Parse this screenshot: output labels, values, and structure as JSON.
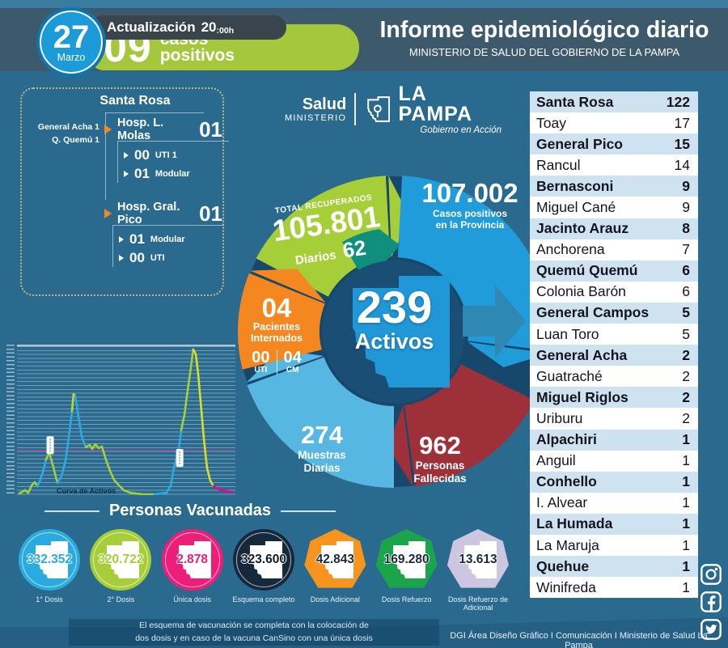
{
  "header": {
    "date_day": "27",
    "date_month": "Marzo",
    "update_label": "Actualización",
    "update_hour": "20",
    "update_minutes": ":00h",
    "daily_cases_value": "09",
    "daily_cases_line1": "casos",
    "daily_cases_line2": "positivos",
    "title": "Informe epidemiológico diario",
    "subtitle": "MINISTERIO DE SALUD DEL GOBIERNO DE LA PAMPA"
  },
  "logo": {
    "salud": "Salud",
    "ministerio": "MINISTERIO",
    "province": "LA PAMPA",
    "tagline": "Gobierno en Acción"
  },
  "hospital_panel": {
    "title": "Santa Rosa",
    "side_notes": [
      "General Acha 1",
      "Q. Quemú 1"
    ],
    "groups": [
      {
        "name": "Hosp. L. Molas",
        "value": "01",
        "subs": [
          {
            "value": "00",
            "label": "UTI 1"
          },
          {
            "value": "01",
            "label": "Modular"
          }
        ]
      },
      {
        "name": "Hosp. Gral. Pico",
        "value": "01",
        "subs": [
          {
            "value": "01",
            "label": "Modular"
          },
          {
            "value": "00",
            "label": "UTI"
          }
        ]
      }
    ]
  },
  "donut": {
    "positives": {
      "value": "107.002",
      "label_line1": "Casos positivos",
      "label_line2": "en la Provincia"
    },
    "recovered": {
      "label": "TOTAL RECUPERADOS",
      "value": "105.801",
      "daily_label": "Diarios",
      "daily_value": "62"
    },
    "hospitalized": {
      "value": "04",
      "label_line1": "Pacientes",
      "label_line2": "Internados",
      "uti_value": "00",
      "uti_label": "UTI",
      "cm_value": "04",
      "cm_label": "CM"
    },
    "samples": {
      "value": "274",
      "label_line1": "Muestras",
      "label_line2": "Diarias"
    },
    "deaths": {
      "value": "962",
      "label_line1": "Personas",
      "label_line2": "Fallecidas"
    },
    "active": {
      "value": "239",
      "label": "Activos"
    },
    "colors": {
      "recovered": "#a6ce39",
      "positives": "#1f9cd9",
      "deaths": "#9e3039",
      "samples": "#55b7e2",
      "hospitalized": "#f58721",
      "cycle_accent": "#0f8f7d",
      "active_map": "#2098d8",
      "back_ring": "#17486b",
      "center_disc": "#1a4e74"
    }
  },
  "cases_table": {
    "rows": [
      {
        "name": "Santa Rosa",
        "value": "122"
      },
      {
        "name": "Toay",
        "value": "17"
      },
      {
        "name": "General Pico",
        "value": "15"
      },
      {
        "name": "Rancul",
        "value": "14"
      },
      {
        "name": "Bernasconi",
        "value": "9"
      },
      {
        "name": "Miguel Cané",
        "value": "9"
      },
      {
        "name": "Jacinto Arauz",
        "value": "8"
      },
      {
        "name": "Anchorena",
        "value": "7"
      },
      {
        "name": "Quemú Quemú",
        "value": "6"
      },
      {
        "name": "Colonia Barón",
        "value": "6"
      },
      {
        "name": "General Campos",
        "value": "5"
      },
      {
        "name": "Luan Toro",
        "value": "5"
      },
      {
        "name": "General Acha",
        "value": "2"
      },
      {
        "name": "Guatraché",
        "value": "2"
      },
      {
        "name": "Miguel Riglos",
        "value": "2"
      },
      {
        "name": "Uriburu",
        "value": "2"
      },
      {
        "name": "Alpachiri",
        "value": "1"
      },
      {
        "name": "Anguil",
        "value": "1"
      },
      {
        "name": "Conhello",
        "value": "1"
      },
      {
        "name": "I. Alvear",
        "value": "1"
      },
      {
        "name": "La Humada",
        "value": "1"
      },
      {
        "name": "La Maruja",
        "value": "1"
      },
      {
        "name": "Quehue",
        "value": "1"
      },
      {
        "name": "Winifreda",
        "value": "1"
      }
    ],
    "shade_color": "#cfe2ef"
  },
  "chart_data": {
    "type": "line",
    "title": "Curva de Activos",
    "x_axis": {
      "tick_labels_visible": false
    },
    "y_axis": {
      "tick_labels_visible": true,
      "tick_labels_legible": false,
      "gridlines": true
    },
    "reference_line_y_pct": 30,
    "reference_line_color": "#a23b8f",
    "markers_pct": [
      [
        15.2,
        33.5
      ],
      [
        74.5,
        25.0
      ]
    ],
    "segments": [
      {
        "color": "#a6ce39",
        "points": [
          [
            1.1,
            1.1
          ],
          [
            3.7,
            3.3
          ],
          [
            5.2,
            1.6
          ],
          [
            6.7,
            6.5
          ],
          [
            8.1,
            8.7
          ],
          [
            9.3,
            6.0
          ]
        ]
      },
      {
        "color": "#29abe2",
        "points": [
          [
            9.3,
            6.0
          ],
          [
            10.4,
            9.2
          ],
          [
            11.9,
            15.8
          ],
          [
            13.3,
            23.9
          ]
        ]
      },
      {
        "color": "#a6ce39",
        "points": [
          [
            13.3,
            23.9
          ],
          [
            14.8,
            28.3
          ],
          [
            16.7,
            18.5
          ],
          [
            18.5,
            8.2
          ]
        ]
      },
      {
        "color": "#29abe2",
        "points": [
          [
            18.5,
            8.2
          ],
          [
            20.4,
            13.0
          ],
          [
            22.2,
            22.8
          ],
          [
            24.1,
            42.9
          ],
          [
            25.2,
            56.5
          ]
        ]
      },
      {
        "color": "#c3d82e",
        "points": [
          [
            25.2,
            56.5
          ],
          [
            25.9,
            67.9
          ],
          [
            26.7,
            66.3
          ]
        ]
      },
      {
        "color": "#29abe2",
        "points": [
          [
            26.7,
            66.3
          ],
          [
            27.8,
            56.0
          ],
          [
            29.6,
            39.7
          ],
          [
            31.5,
            32.1
          ]
        ]
      },
      {
        "color": "#a6ce39",
        "points": [
          [
            31.5,
            32.1
          ],
          [
            33.3,
            33.7
          ],
          [
            34.4,
            31.0
          ],
          [
            35.9,
            34.2
          ],
          [
            37.4,
            31.5
          ],
          [
            38.9,
            32.6
          ],
          [
            40.7,
            23.9
          ],
          [
            42.6,
            16.3
          ],
          [
            44.4,
            10.3
          ],
          [
            46.3,
            7.1
          ],
          [
            48.9,
            3.3
          ],
          [
            51.9,
            1.6
          ],
          [
            57.4,
            0.5
          ],
          [
            63.0,
            0.5
          ]
        ]
      },
      {
        "color": "#29abe2",
        "points": [
          [
            63.0,
            0.5
          ],
          [
            68.5,
            1.6
          ],
          [
            70.4,
            6.5
          ],
          [
            72.2,
            20.7
          ],
          [
            74.1,
            31.0
          ],
          [
            75.2,
            43.5
          ]
        ]
      },
      {
        "color": "#a6ce39",
        "points": [
          [
            75.2,
            43.5
          ],
          [
            76.7,
            54.3
          ],
          [
            77.8,
            66.8
          ],
          [
            79.6,
            85.3
          ],
          [
            80.7,
            97.8
          ]
        ]
      },
      {
        "color": "#d7df23",
        "points": [
          [
            80.7,
            97.8
          ],
          [
            81.9,
            94.6
          ],
          [
            83.0,
            81.0
          ],
          [
            84.1,
            62.0
          ],
          [
            85.6,
            37.5
          ],
          [
            87.0,
            18.5
          ],
          [
            88.5,
            9.8
          ],
          [
            90.0,
            6.0
          ]
        ]
      },
      {
        "color": "#ec008c",
        "points": [
          [
            90.0,
            6.0
          ],
          [
            92.6,
            3.8
          ],
          [
            95.6,
            2.7
          ],
          [
            98.5,
            2.2
          ]
        ]
      }
    ]
  },
  "vaccination": {
    "title": "Personas Vacunadas",
    "badges": [
      {
        "value": "332.352",
        "label": "1° Dosis",
        "color": "#29abe2",
        "number_color": "#29abe2",
        "shape": "circle"
      },
      {
        "value": "320.722",
        "label": "2° Dosis",
        "color": "#a6ce39",
        "number_color": "#a6ce39",
        "shape": "circle"
      },
      {
        "value": "2.878",
        "label": "Única dosis",
        "color": "#ec1e79",
        "number_color": "#ec1e79",
        "shape": "circle"
      },
      {
        "value": "323.600",
        "label": "Esquema completo",
        "color": "#16283c",
        "number_color": "#111c28",
        "shape": "circle"
      },
      {
        "value": "42.843",
        "label": "Dosis Adicional",
        "color": "#f7941e",
        "number_color": "#1b2a3a",
        "shape": "heptagon"
      },
      {
        "value": "169.280",
        "label": "Dosis Refuerzo",
        "color": "#1aa54a",
        "number_color": "#1b2a3a",
        "shape": "heptagon"
      },
      {
        "value": "13.613",
        "label": "Dosis Refuerzo de Adicional",
        "color": "#cdc6e0",
        "number_color": "#1b2a3a",
        "shape": "heptagon"
      }
    ],
    "footnote_line1": "El esquema de vacunación se completa con la colocación de",
    "footnote_line2": "dos dosis y en caso de la vacuna CanSino con una única dosis"
  },
  "footer": {
    "credits": "DGI Área Diseño Gráfico  I Comunicación I Ministerio de Salud La Pampa"
  },
  "social": [
    {
      "name": "instagram"
    },
    {
      "name": "facebook"
    },
    {
      "name": "twitter"
    }
  ]
}
